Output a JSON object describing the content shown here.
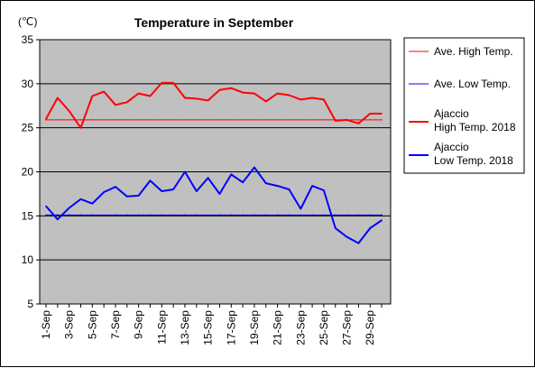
{
  "chart_data": {
    "type": "line",
    "title": "Temperature in September",
    "unit_label": "(℃)",
    "ylim": [
      5,
      35
    ],
    "y_ticks": [
      5,
      10,
      15,
      20,
      25,
      30,
      35
    ],
    "grid": "horizontal",
    "x_tick_labels": [
      "1-Sep",
      "3-Sep",
      "5-Sep",
      "7-Sep",
      "9-Sep",
      "11-Sep",
      "13-Sep",
      "15-Sep",
      "17-Sep",
      "19-Sep",
      "21-Sep",
      "23-Sep",
      "25-Sep",
      "27-Sep",
      "29-Sep"
    ],
    "legend_position": "right",
    "series": [
      {
        "name": "Ave. High Temp.",
        "color": "#ff0000",
        "style": "thin",
        "values": [
          25.9,
          25.9,
          25.9,
          25.9,
          25.9,
          25.9,
          25.9,
          25.9,
          25.9,
          25.9,
          25.9,
          25.9,
          25.9,
          25.9,
          25.9,
          25.9,
          25.9,
          25.9,
          25.9,
          25.9,
          25.9,
          25.9,
          25.9,
          25.9,
          25.9,
          25.9,
          25.9,
          25.9,
          25.9,
          25.9
        ]
      },
      {
        "name": "Ave. Low Temp.",
        "color": "#0000ff",
        "style": "thin",
        "values": [
          15.1,
          15.1,
          15.1,
          15.1,
          15.1,
          15.1,
          15.1,
          15.1,
          15.1,
          15.1,
          15.1,
          15.1,
          15.1,
          15.1,
          15.1,
          15.1,
          15.1,
          15.1,
          15.1,
          15.1,
          15.1,
          15.1,
          15.1,
          15.1,
          15.1,
          15.1,
          15.1,
          15.1,
          15.1,
          15.1
        ]
      },
      {
        "name": "Ajaccio High Temp. 2018",
        "legend_lines": [
          "Ajaccio",
          "High Temp. 2018"
        ],
        "color": "#ff0000",
        "style": "thick",
        "values": [
          26.0,
          28.4,
          26.9,
          25.0,
          28.6,
          29.1,
          27.6,
          27.9,
          28.9,
          28.6,
          30.1,
          30.1,
          28.4,
          28.3,
          28.1,
          29.3,
          29.5,
          29.0,
          28.9,
          28.0,
          28.9,
          28.7,
          28.2,
          28.4,
          28.2,
          25.8,
          25.9,
          25.5,
          26.6,
          26.6
        ]
      },
      {
        "name": "Ajaccio Low Temp. 2018",
        "legend_lines": [
          "Ajaccio",
          "Low Temp. 2018"
        ],
        "color": "#0000ff",
        "style": "thick",
        "values": [
          16.1,
          14.6,
          15.9,
          16.9,
          16.4,
          17.7,
          18.3,
          17.2,
          17.3,
          19.0,
          17.8,
          18.0,
          20.0,
          17.8,
          19.3,
          17.5,
          19.7,
          18.8,
          20.5,
          18.7,
          18.4,
          18.0,
          15.8,
          18.4,
          17.9,
          13.6,
          12.6,
          11.9,
          13.6,
          14.5
        ]
      }
    ]
  }
}
